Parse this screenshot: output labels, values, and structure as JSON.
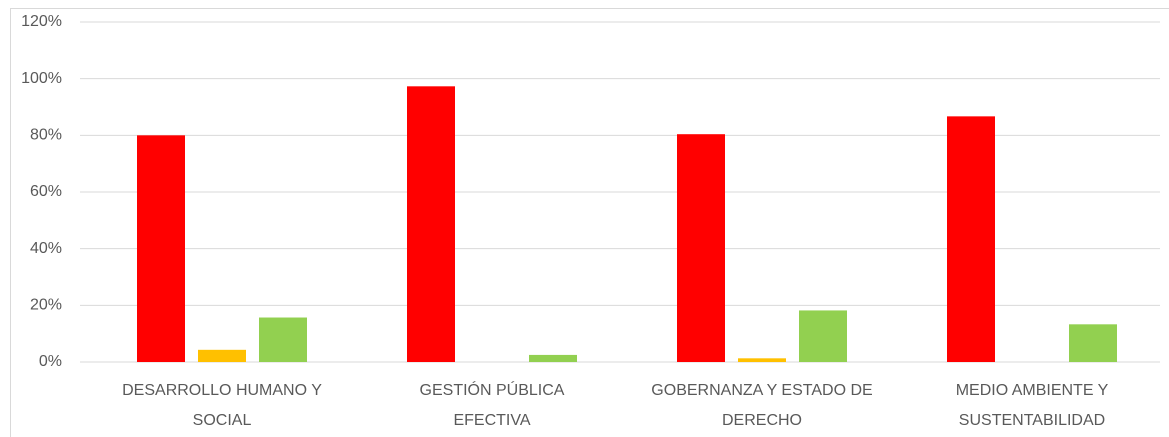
{
  "chart_data": {
    "type": "bar",
    "categories": [
      [
        "DESARROLLO HUMANO Y",
        "SOCIAL"
      ],
      [
        "GESTIÓN PÚBLICA",
        "EFECTIVA"
      ],
      [
        "GOBERNANZA Y ESTADO DE",
        "DERECHO"
      ],
      [
        "MEDIO AMBIENTE Y",
        "SUSTENTABILIDAD"
      ]
    ],
    "series": [
      {
        "color": "#ff0000",
        "values": [
          80,
          97.3,
          80.4,
          86.7
        ]
      },
      {
        "color": "#ffc000",
        "values": [
          4.3,
          0,
          1.3,
          0
        ]
      },
      {
        "color": "#92d050",
        "values": [
          15.7,
          2.5,
          18.2,
          13.3
        ]
      }
    ],
    "ylim": [
      0,
      120
    ],
    "yticks": [
      {
        "value": 0,
        "label": "0%"
      },
      {
        "value": 20,
        "label": "20%"
      },
      {
        "value": 40,
        "label": "40%"
      },
      {
        "value": 60,
        "label": "60%"
      },
      {
        "value": 80,
        "label": "80%"
      },
      {
        "value": 100,
        "label": "100%"
      },
      {
        "value": 120,
        "label": "120%"
      }
    ],
    "grid": true
  }
}
